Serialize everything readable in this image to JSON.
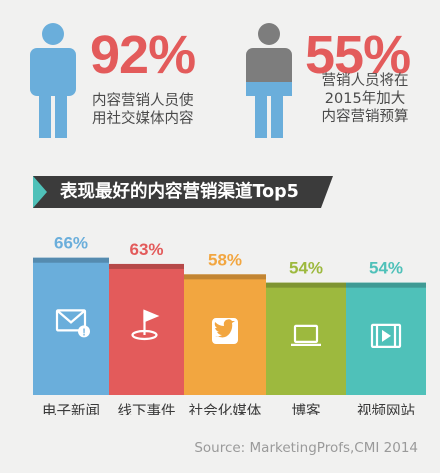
{
  "stats": [
    {
      "value": "92%",
      "lines": [
        "内容营销人员使",
        "用社交媒体内容"
      ]
    },
    {
      "value": "55%",
      "lines": [
        "营销人员将在",
        "2015年加大",
        "内容营销预算"
      ]
    }
  ],
  "banner_title": "表现最好的内容营销渠道Top5",
  "source": "Source: MarketingProfs,CMI 2014",
  "colors": {
    "red": "#e35b5b",
    "blue": "#6aaedb",
    "gray": "#7d7d7d",
    "dark": "#3b3b3b",
    "teal": "#4fc1b9"
  },
  "chart_data": {
    "type": "bar",
    "categories": [
      "电子新闻",
      "线下事件",
      "社会化媒体",
      "博客",
      "视频网站"
    ],
    "values": [
      66,
      63,
      58,
      54,
      54
    ],
    "value_labels": [
      "66%",
      "63%",
      "58%",
      "54%",
      "54%"
    ],
    "colors": [
      "#6aaedb",
      "#e35b5b",
      "#f2a640",
      "#9db93e",
      "#4fc1b9"
    ],
    "icons": [
      "email-alert-icon",
      "flag-icon",
      "twitter-icon",
      "laptop-icon",
      "video-icon"
    ]
  }
}
